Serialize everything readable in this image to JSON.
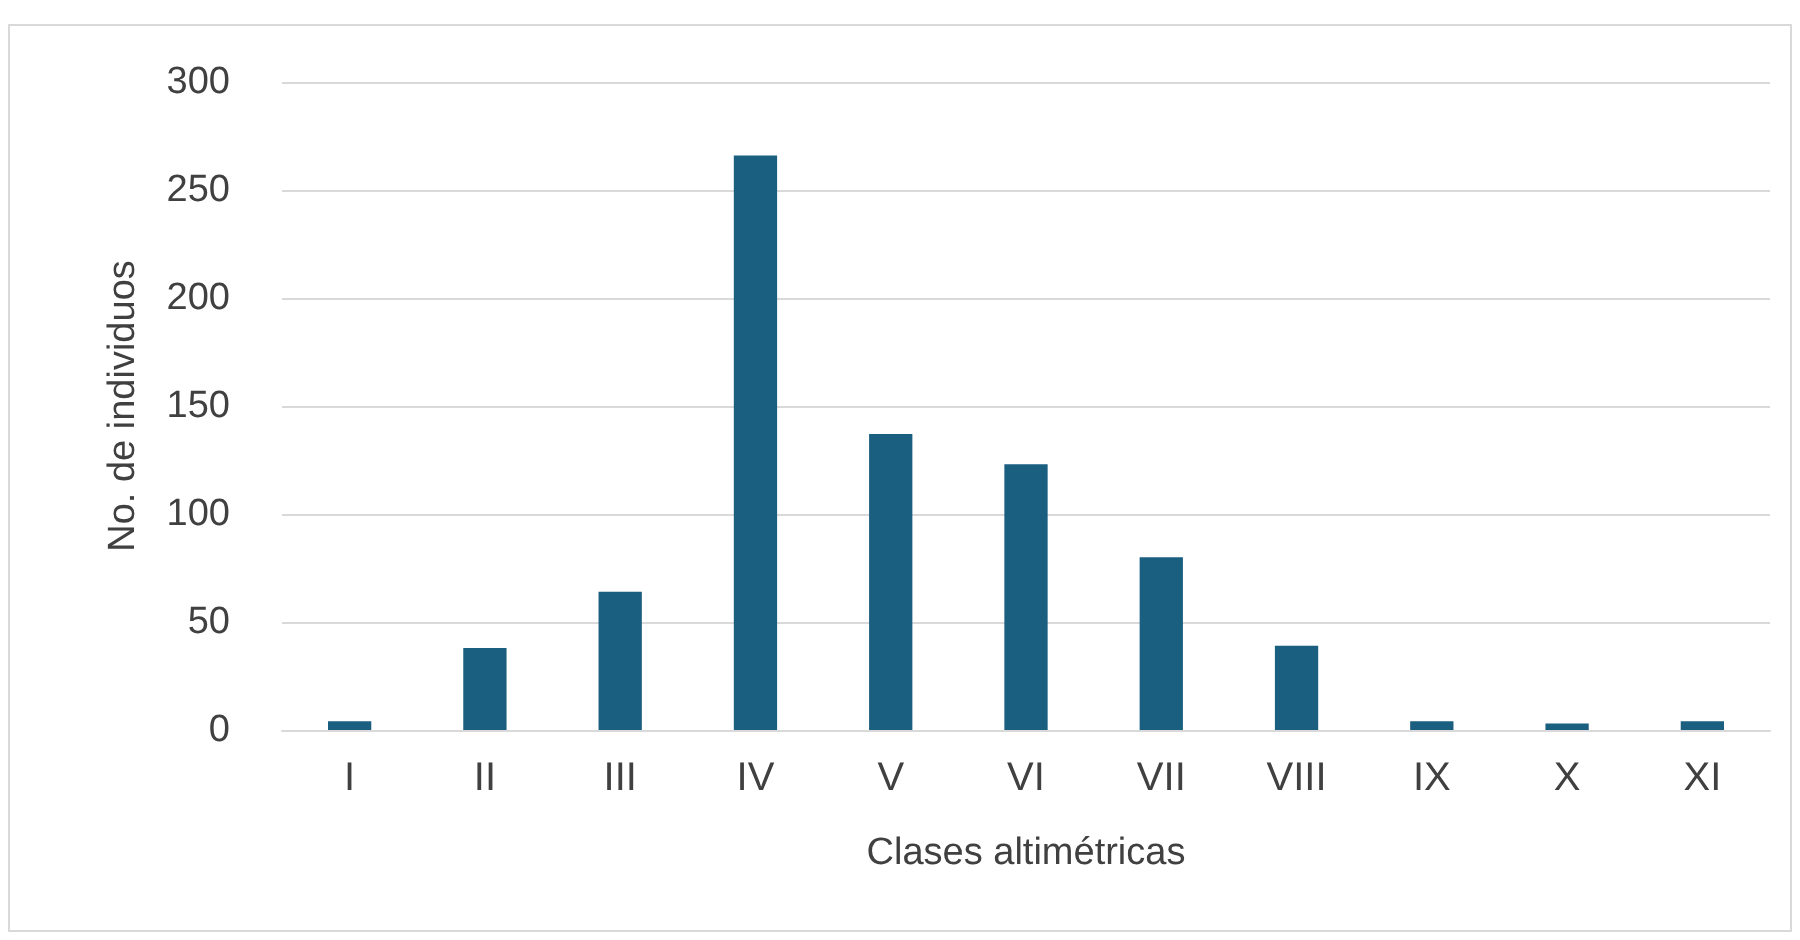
{
  "chart_data": {
    "type": "bar",
    "xlabel": "Clases altimétricas",
    "ylabel": "No. de individuos",
    "categories": [
      "I",
      "II",
      "III",
      "IV",
      "V",
      "VI",
      "VII",
      "VIII",
      "IX",
      "X",
      "XI"
    ],
    "values": [
      4,
      38,
      64,
      266,
      137,
      123,
      80,
      39,
      4,
      3,
      4
    ],
    "color": "#1a5e80",
    "ylim": [
      0,
      300
    ],
    "yticks": [
      0,
      50,
      100,
      150,
      200,
      250,
      300
    ],
    "grid": "y"
  }
}
